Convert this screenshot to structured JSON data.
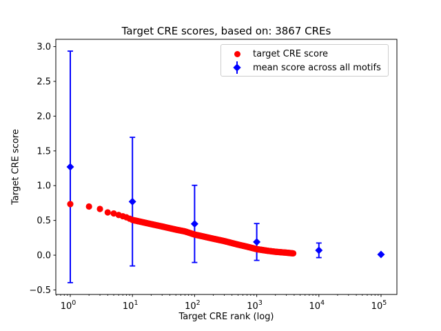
{
  "figure": {
    "title": "Target CRE scores, based on: 3867 CREs",
    "xlabel": "Target CRE rank (log)",
    "ylabel": "Target CRE score"
  },
  "legend": {
    "position": "upper right",
    "items": [
      {
        "marker": "red-circle",
        "label": "target CRE score"
      },
      {
        "marker": "blue-diamond-errorbar",
        "label": "mean score across all motifs"
      }
    ]
  },
  "chart_data": {
    "type": "scatter",
    "title": "Target CRE scores, based on: 3867 CREs",
    "xlabel": "Target CRE rank (log)",
    "ylabel": "Target CRE score",
    "x_scale": "log",
    "xlim": [
      0.585,
      180000
    ],
    "ylim": [
      -0.565,
      3.105
    ],
    "grid": false,
    "x_tick_exponents": [
      0,
      1,
      2,
      3,
      4,
      5
    ],
    "x_tick_labels": [
      "10⁰",
      "10¹",
      "10²",
      "10³",
      "10⁴",
      "10⁵"
    ],
    "y_ticks": [
      3.0,
      2.5,
      2.0,
      1.5,
      1.0,
      0.5,
      0.0,
      -0.5
    ],
    "y_tick_labels": [
      "3.0",
      "2.5",
      "2.0",
      "1.5",
      "1.0",
      "0.5",
      "0.0",
      "−0.5"
    ],
    "colors": {
      "target_series": "#ff0000",
      "mean_series": "#0000ff"
    },
    "series": [
      {
        "name": "target CRE score",
        "type": "scatter",
        "marker": "circle",
        "color": "#ff0000",
        "n_points": 3867,
        "note": "3867 points, one per CRE rank, monotonically decreasing; anchor points read from plot, intermediate ranks interpolated log-linearly",
        "anchor_points": [
          [
            1,
            0.735
          ],
          [
            2,
            0.7
          ],
          [
            3,
            0.665
          ],
          [
            4,
            0.615
          ],
          [
            5,
            0.6
          ],
          [
            6,
            0.578
          ],
          [
            8,
            0.545
          ],
          [
            10,
            0.507
          ],
          [
            15,
            0.472
          ],
          [
            20,
            0.447
          ],
          [
            30,
            0.413
          ],
          [
            50,
            0.368
          ],
          [
            70,
            0.342
          ],
          [
            100,
            0.297
          ],
          [
            150,
            0.262
          ],
          [
            200,
            0.237
          ],
          [
            300,
            0.203
          ],
          [
            500,
            0.152
          ],
          [
            700,
            0.122
          ],
          [
            1000,
            0.087
          ],
          [
            1500,
            0.063
          ],
          [
            2000,
            0.049
          ],
          [
            3000,
            0.036
          ],
          [
            3867,
            0.026
          ]
        ]
      },
      {
        "name": "mean score across all motifs",
        "type": "errorbar",
        "marker": "diamond",
        "color": "#0000ff",
        "x": [
          1,
          10,
          100,
          1000,
          10000,
          100000
        ],
        "mean": [
          1.27,
          0.77,
          0.45,
          0.19,
          0.07,
          0.01
        ],
        "err": [
          1.665,
          0.925,
          0.555,
          0.265,
          0.105,
          0.01
        ]
      }
    ]
  }
}
